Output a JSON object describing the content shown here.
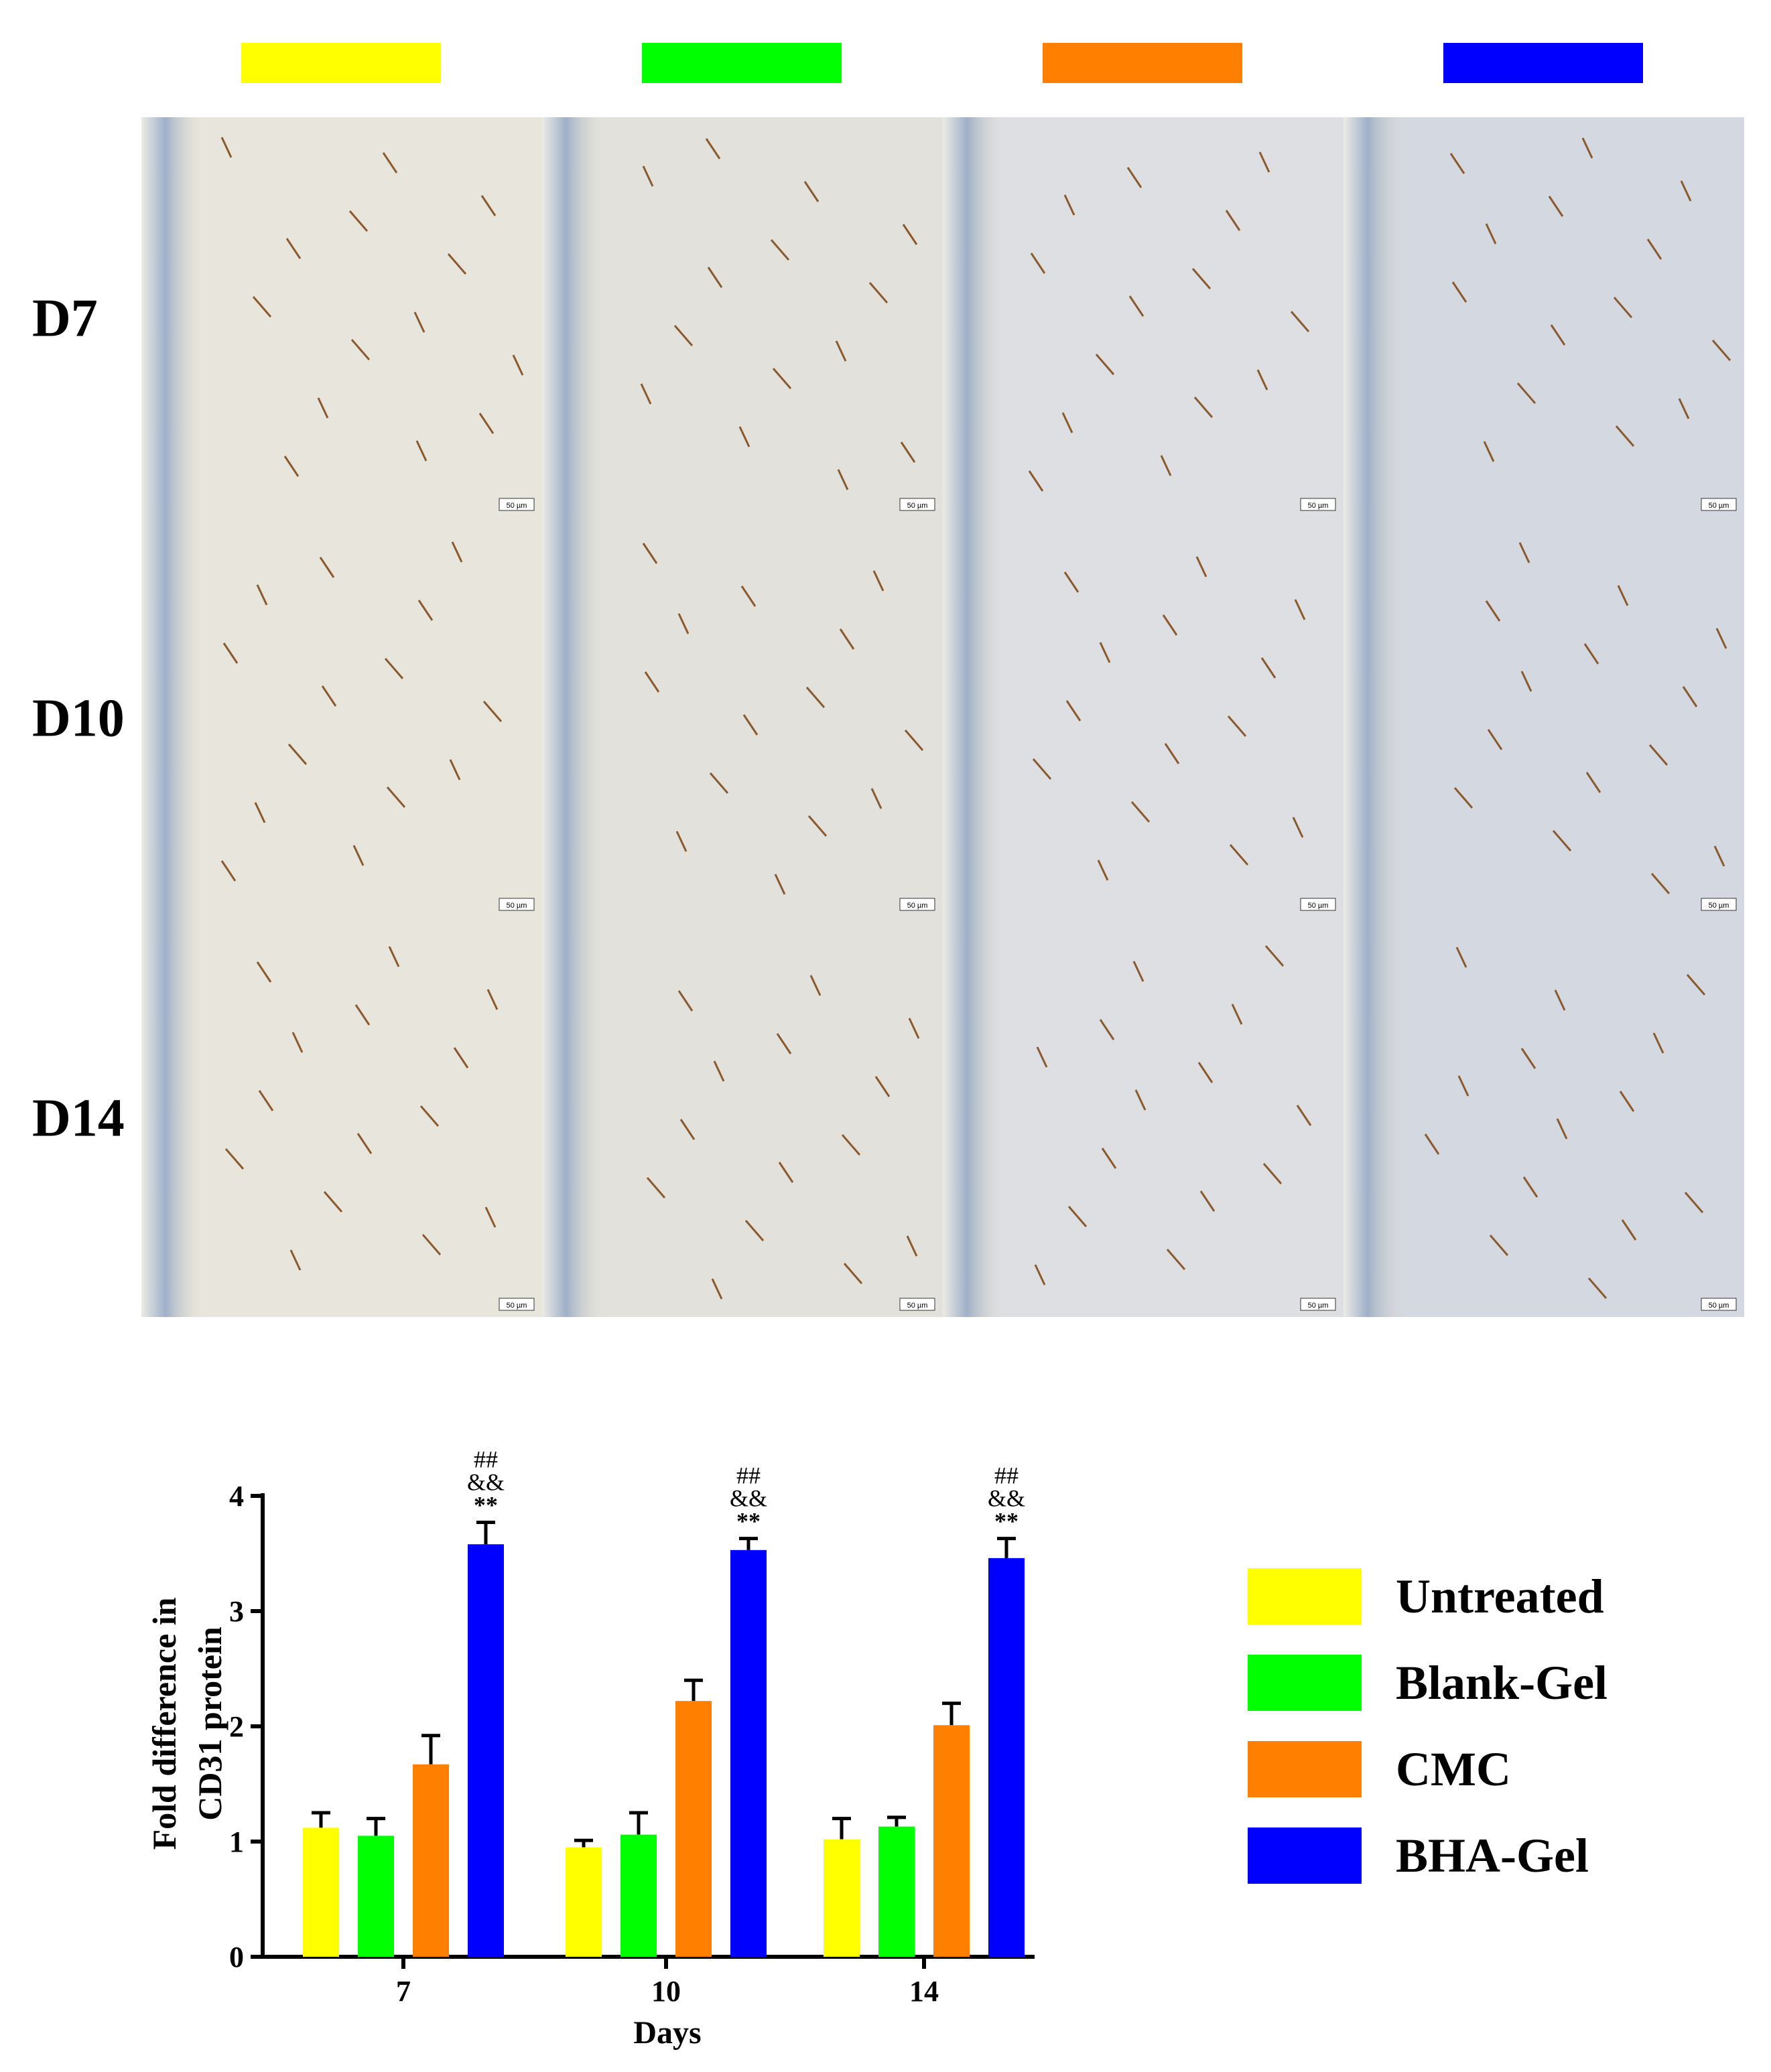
{
  "row_labels": [
    "D7",
    "D10",
    "D14"
  ],
  "scale_bar": "50 µm",
  "chart_data": {
    "type": "bar",
    "categories": [
      "7",
      "10",
      "14"
    ],
    "xlabel": "Days",
    "ylabel": [
      "Fold difference in",
      "CD31 protein"
    ],
    "ylim": [
      0,
      4
    ],
    "yticks": [
      0,
      1,
      2,
      3,
      4
    ],
    "series": [
      {
        "name": "Untreated",
        "color": "#ffff00",
        "values": [
          1.12,
          0.95,
          1.02
        ],
        "errors": [
          0.13,
          0.06,
          0.18
        ]
      },
      {
        "name": "Blank-Gel",
        "color": "#00ff00",
        "values": [
          1.05,
          1.06,
          1.13
        ],
        "errors": [
          0.15,
          0.19,
          0.08
        ]
      },
      {
        "name": "CMC",
        "color": "#ff8000",
        "values": [
          1.67,
          2.22,
          2.01
        ],
        "errors": [
          0.25,
          0.18,
          0.19
        ]
      },
      {
        "name": "BHA-Gel",
        "color": "#0000ff",
        "values": [
          3.58,
          3.53,
          3.46
        ],
        "errors": [
          0.19,
          0.1,
          0.17
        ],
        "annotations": [
          "##",
          "&&",
          "**"
        ]
      }
    ]
  }
}
